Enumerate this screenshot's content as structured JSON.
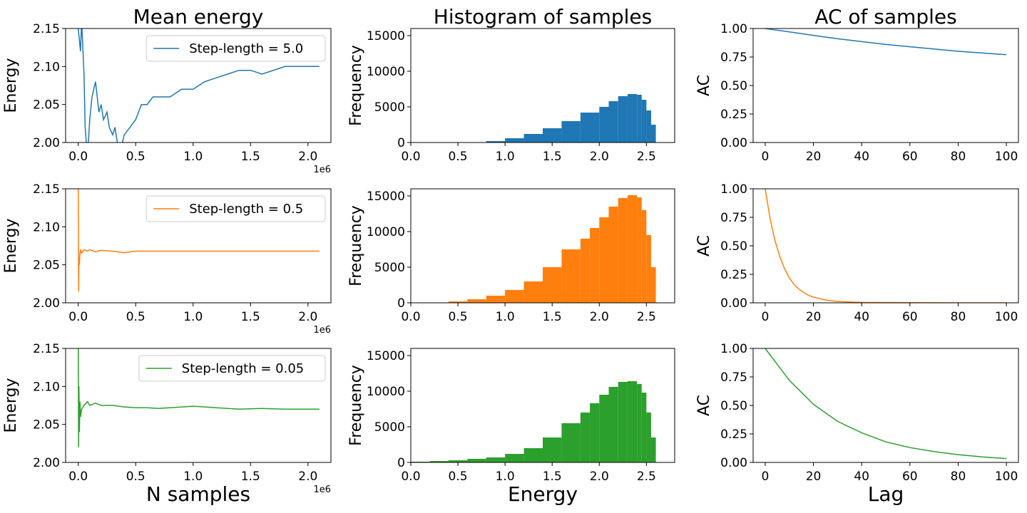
{
  "chart_data": [
    {
      "type": "line",
      "panel": "mean-energy",
      "title": "Mean energy",
      "xlabel": "",
      "ylabel": "Energy",
      "x_offset_label": "1e6",
      "xlim": [
        -0.11,
        2.2
      ],
      "ylim": [
        2.0,
        2.15
      ],
      "xticks": [
        0.0,
        0.5,
        1.0,
        1.5,
        2.0
      ],
      "xtick_labels": [
        "0.0",
        "0.5",
        "1.0",
        "1.5",
        "2.0"
      ],
      "yticks": [
        2.0,
        2.05,
        2.1,
        2.15
      ],
      "ytick_labels": [
        "2.00",
        "2.05",
        "2.10",
        "2.15"
      ],
      "color": "#1f77b4",
      "legend": "Step-length = 5.0",
      "x": [
        0.0,
        0.02,
        0.03,
        0.05,
        0.06,
        0.08,
        0.1,
        0.12,
        0.15,
        0.18,
        0.2,
        0.22,
        0.25,
        0.27,
        0.3,
        0.32,
        0.34,
        0.37,
        0.4,
        0.45,
        0.5,
        0.55,
        0.6,
        0.65,
        0.7,
        0.75,
        0.8,
        0.9,
        1.0,
        1.1,
        1.2,
        1.3,
        1.4,
        1.5,
        1.6,
        1.7,
        1.8,
        1.9,
        2.0,
        2.1
      ],
      "y": [
        2.15,
        2.12,
        2.16,
        2.09,
        2.02,
        1.98,
        2.03,
        2.06,
        2.08,
        2.04,
        2.05,
        2.03,
        2.04,
        2.02,
        2.01,
        2.02,
        2.0,
        1.99,
        2.01,
        2.02,
        2.03,
        2.05,
        2.05,
        2.06,
        2.06,
        2.06,
        2.06,
        2.07,
        2.07,
        2.08,
        2.085,
        2.09,
        2.095,
        2.095,
        2.09,
        2.095,
        2.1,
        2.1,
        2.1,
        2.1
      ]
    },
    {
      "type": "bar",
      "panel": "histogram",
      "title": "Histogram of samples",
      "xlabel": "",
      "ylabel": "Frequency",
      "xlim": [
        0.0,
        2.8
      ],
      "ylim": [
        0,
        16000
      ],
      "xticks": [
        0.0,
        0.5,
        1.0,
        1.5,
        2.0,
        2.5
      ],
      "xtick_labels": [
        "0.0",
        "0.5",
        "1.0",
        "1.5",
        "2.0",
        "2.5"
      ],
      "yticks": [
        0,
        5000,
        10000,
        15000
      ],
      "ytick_labels": [
        "0",
        "5000",
        "10000",
        "15000"
      ],
      "color": "#1f77b4",
      "x": [
        0.5,
        0.8,
        1.0,
        1.2,
        1.4,
        1.6,
        1.8,
        2.0,
        2.1,
        2.2,
        2.3,
        2.35,
        2.4,
        2.45,
        2.5,
        2.55,
        2.6
      ],
      "y": [
        0,
        50,
        200,
        600,
        1200,
        2000,
        3000,
        4200,
        5000,
        5800,
        6500,
        6800,
        6700,
        6000,
        4500,
        2500,
        0
      ]
    },
    {
      "type": "line",
      "panel": "autocorrelation",
      "title": "AC of samples",
      "xlabel": "",
      "ylabel": "AC",
      "xlim": [
        -5,
        105
      ],
      "ylim": [
        0.0,
        1.0
      ],
      "xticks": [
        0,
        20,
        40,
        60,
        80,
        100
      ],
      "xtick_labels": [
        "0",
        "20",
        "40",
        "60",
        "80",
        "100"
      ],
      "yticks": [
        0.0,
        0.25,
        0.5,
        0.75,
        1.0
      ],
      "ytick_labels": [
        "0.00",
        "0.25",
        "0.50",
        "0.75",
        "1.00"
      ],
      "color": "#1f77b4",
      "x": [
        0,
        10,
        20,
        30,
        40,
        50,
        60,
        70,
        80,
        90,
        100
      ],
      "y": [
        1.0,
        0.97,
        0.94,
        0.91,
        0.885,
        0.86,
        0.84,
        0.82,
        0.8,
        0.785,
        0.77
      ]
    },
    {
      "type": "line",
      "panel": "mean-energy",
      "title": "",
      "xlabel": "",
      "ylabel": "Energy",
      "x_offset_label": "1e6",
      "xlim": [
        -0.11,
        2.2
      ],
      "ylim": [
        2.0,
        2.15
      ],
      "xticks": [
        0.0,
        0.5,
        1.0,
        1.5,
        2.0
      ],
      "xtick_labels": [
        "0.0",
        "0.5",
        "1.0",
        "1.5",
        "2.0"
      ],
      "yticks": [
        2.0,
        2.05,
        2.1,
        2.15
      ],
      "ytick_labels": [
        "2.00",
        "2.05",
        "2.10",
        "2.15"
      ],
      "color": "#ff7f0e",
      "legend": "Step-length = 0.5",
      "x": [
        0.0,
        0.003,
        0.006,
        0.01,
        0.015,
        0.02,
        0.03,
        0.05,
        0.08,
        0.1,
        0.15,
        0.2,
        0.3,
        0.4,
        0.5,
        0.6,
        0.8,
        1.0,
        1.2,
        1.4,
        1.6,
        1.8,
        2.0,
        2.1
      ],
      "y": [
        2.17,
        2.015,
        2.06,
        2.05,
        2.065,
        2.07,
        2.065,
        2.07,
        2.068,
        2.07,
        2.067,
        2.069,
        2.068,
        2.066,
        2.068,
        2.068,
        2.068,
        2.068,
        2.068,
        2.068,
        2.068,
        2.068,
        2.068,
        2.068
      ]
    },
    {
      "type": "bar",
      "panel": "histogram",
      "title": "",
      "xlabel": "",
      "ylabel": "Frequency",
      "xlim": [
        0.0,
        2.8
      ],
      "ylim": [
        0,
        16000
      ],
      "xticks": [
        0.0,
        0.5,
        1.0,
        1.5,
        2.0,
        2.5
      ],
      "xtick_labels": [
        "0.0",
        "0.5",
        "1.0",
        "1.5",
        "2.0",
        "2.5"
      ],
      "yticks": [
        0,
        5000,
        10000,
        15000
      ],
      "ytick_labels": [
        "0",
        "5000",
        "10000",
        "15000"
      ],
      "color": "#ff7f0e",
      "x": [
        0.4,
        0.6,
        0.8,
        1.0,
        1.2,
        1.4,
        1.6,
        1.8,
        1.9,
        2.0,
        2.1,
        2.2,
        2.3,
        2.35,
        2.4,
        2.45,
        2.5,
        2.55,
        2.6
      ],
      "y": [
        0,
        200,
        500,
        1000,
        1800,
        3000,
        5000,
        7500,
        9000,
        10500,
        12000,
        13500,
        14700,
        15100,
        14800,
        13000,
        9500,
        5000,
        0
      ]
    },
    {
      "type": "line",
      "panel": "autocorrelation",
      "title": "",
      "xlabel": "",
      "ylabel": "AC",
      "xlim": [
        -5,
        105
      ],
      "ylim": [
        0.0,
        1.0
      ],
      "xticks": [
        0,
        20,
        40,
        60,
        80,
        100
      ],
      "xtick_labels": [
        "0",
        "20",
        "40",
        "60",
        "80",
        "100"
      ],
      "yticks": [
        0.0,
        0.25,
        0.5,
        0.75,
        1.0
      ],
      "ytick_labels": [
        "0.00",
        "0.25",
        "0.50",
        "0.75",
        "1.00"
      ],
      "color": "#ff7f0e",
      "x": [
        0,
        2,
        4,
        6,
        8,
        10,
        12,
        14,
        16,
        18,
        20,
        25,
        30,
        40,
        60,
        80,
        100
      ],
      "y": [
        1.0,
        0.74,
        0.55,
        0.41,
        0.3,
        0.22,
        0.16,
        0.12,
        0.09,
        0.065,
        0.05,
        0.025,
        0.012,
        0.004,
        0.001,
        0.0,
        0.0
      ]
    },
    {
      "type": "line",
      "panel": "mean-energy",
      "title": "",
      "xlabel": "N samples",
      "ylabel": "Energy",
      "x_offset_label": "1e6",
      "xlim": [
        -0.11,
        2.2
      ],
      "ylim": [
        2.0,
        2.15
      ],
      "xticks": [
        0.0,
        0.5,
        1.0,
        1.5,
        2.0
      ],
      "xtick_labels": [
        "0.0",
        "0.5",
        "1.0",
        "1.5",
        "2.0"
      ],
      "yticks": [
        2.0,
        2.05,
        2.1,
        2.15
      ],
      "ytick_labels": [
        "2.00",
        "2.05",
        "2.10",
        "2.15"
      ],
      "color": "#2ca02c",
      "legend": "Step-length = 0.05",
      "x": [
        0.0,
        0.003,
        0.006,
        0.01,
        0.015,
        0.02,
        0.03,
        0.05,
        0.08,
        0.1,
        0.15,
        0.2,
        0.3,
        0.4,
        0.5,
        0.6,
        0.7,
        0.8,
        1.0,
        1.1,
        1.2,
        1.4,
        1.6,
        1.8,
        2.0,
        2.1
      ],
      "y": [
        2.16,
        2.02,
        2.1,
        2.04,
        2.08,
        2.06,
        2.07,
        2.075,
        2.08,
        2.075,
        2.078,
        2.075,
        2.075,
        2.073,
        2.072,
        2.072,
        2.071,
        2.072,
        2.074,
        2.073,
        2.072,
        2.07,
        2.071,
        2.07,
        2.07,
        2.07
      ]
    },
    {
      "type": "bar",
      "panel": "histogram",
      "title": "",
      "xlabel": "Energy",
      "ylabel": "Frequency",
      "xlim": [
        0.0,
        2.8
      ],
      "ylim": [
        0,
        16000
      ],
      "xticks": [
        0.0,
        0.5,
        1.0,
        1.5,
        2.0,
        2.5
      ],
      "xtick_labels": [
        "0.0",
        "0.5",
        "1.0",
        "1.5",
        "2.0",
        "2.5"
      ],
      "yticks": [
        0,
        5000,
        10000,
        15000
      ],
      "ytick_labels": [
        "0",
        "5000",
        "10000",
        "15000"
      ],
      "color": "#2ca02c",
      "x": [
        0.0,
        0.2,
        0.4,
        0.6,
        0.8,
        1.0,
        1.2,
        1.4,
        1.6,
        1.8,
        1.9,
        2.0,
        2.1,
        2.2,
        2.3,
        2.35,
        2.4,
        2.45,
        2.5,
        2.55,
        2.6
      ],
      "y": [
        0,
        100,
        200,
        300,
        500,
        700,
        1200,
        2000,
        3500,
        5500,
        7000,
        8300,
        9500,
        10600,
        11300,
        11400,
        11000,
        9800,
        7000,
        3500,
        0
      ]
    },
    {
      "type": "line",
      "panel": "autocorrelation",
      "title": "",
      "xlabel": "Lag",
      "ylabel": "AC",
      "xlim": [
        -5,
        105
      ],
      "ylim": [
        0.0,
        1.0
      ],
      "xticks": [
        0,
        20,
        40,
        60,
        80,
        100
      ],
      "xtick_labels": [
        "0",
        "20",
        "40",
        "60",
        "80",
        "100"
      ],
      "yticks": [
        0.0,
        0.25,
        0.5,
        0.75,
        1.0
      ],
      "ytick_labels": [
        "0.00",
        "0.25",
        "0.50",
        "0.75",
        "1.00"
      ],
      "color": "#2ca02c",
      "x": [
        0,
        10,
        20,
        30,
        40,
        50,
        60,
        70,
        80,
        90,
        100
      ],
      "y": [
        1.0,
        0.72,
        0.51,
        0.36,
        0.26,
        0.18,
        0.13,
        0.095,
        0.068,
        0.048,
        0.034
      ]
    }
  ]
}
